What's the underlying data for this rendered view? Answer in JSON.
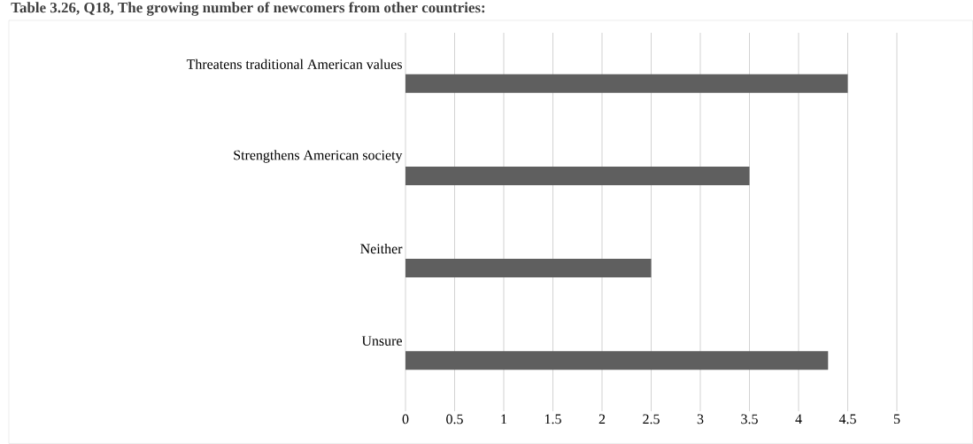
{
  "chart_data": {
    "type": "bar",
    "orientation": "horizontal",
    "title": "Table 3.26, Q18, The growing number of newcomers from other countries:",
    "categories": [
      "Threatens traditional American values",
      "Strengthens American society",
      "Neither",
      "Unsure"
    ],
    "values": [
      4.5,
      3.5,
      2.5,
      4.3
    ],
    "color": "#5f5f5f",
    "xlim": [
      0,
      5
    ],
    "xticks": [
      0,
      0.5,
      1,
      1.5,
      2,
      2.5,
      3,
      3.5,
      4,
      4.5,
      5
    ],
    "grid": "x"
  }
}
